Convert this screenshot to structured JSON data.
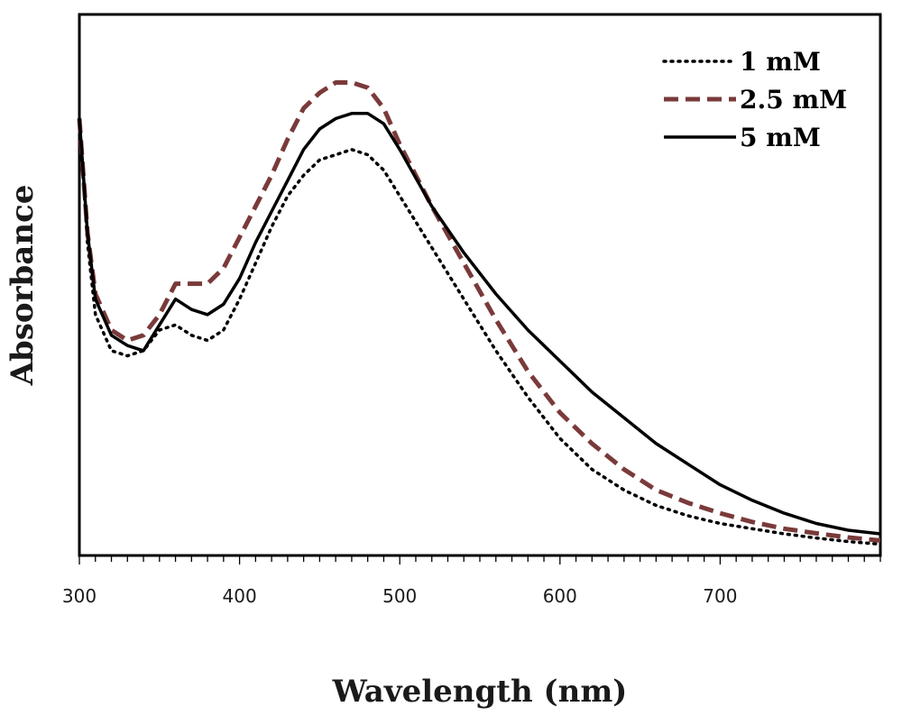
{
  "chart_data": {
    "type": "line",
    "title": "",
    "xlabel": "Wavelength (nm)",
    "ylabel": "Absorbance",
    "xlim": [
      300,
      800
    ],
    "ylim": [
      0,
      1
    ],
    "x_ticks": [
      300,
      400,
      500,
      600,
      700
    ],
    "x_minor_step": 10,
    "y_ticks_shown": false,
    "grid": false,
    "legend_position": "top-right",
    "series": [
      {
        "name": "1 mM",
        "color": "#000000",
        "style": "dotted",
        "points": [
          [
            300,
            0.84
          ],
          [
            305,
            0.6
          ],
          [
            310,
            0.46
          ],
          [
            320,
            0.39
          ],
          [
            330,
            0.38
          ],
          [
            340,
            0.39
          ],
          [
            350,
            0.43
          ],
          [
            360,
            0.44
          ],
          [
            370,
            0.42
          ],
          [
            380,
            0.41
          ],
          [
            390,
            0.43
          ],
          [
            400,
            0.49
          ],
          [
            410,
            0.56
          ],
          [
            420,
            0.63
          ],
          [
            430,
            0.69
          ],
          [
            440,
            0.73
          ],
          [
            450,
            0.76
          ],
          [
            460,
            0.77
          ],
          [
            470,
            0.78
          ],
          [
            480,
            0.77
          ],
          [
            490,
            0.74
          ],
          [
            500,
            0.69
          ],
          [
            520,
            0.59
          ],
          [
            540,
            0.49
          ],
          [
            560,
            0.39
          ],
          [
            580,
            0.3
          ],
          [
            600,
            0.22
          ],
          [
            620,
            0.16
          ],
          [
            640,
            0.12
          ],
          [
            660,
            0.09
          ],
          [
            680,
            0.07
          ],
          [
            700,
            0.055
          ],
          [
            720,
            0.045
          ],
          [
            740,
            0.035
          ],
          [
            760,
            0.027
          ],
          [
            780,
            0.02
          ],
          [
            800,
            0.015
          ]
        ]
      },
      {
        "name": "2.5 mM",
        "color": "#7a3a3a",
        "style": "dashed",
        "points": [
          [
            300,
            0.84
          ],
          [
            305,
            0.62
          ],
          [
            310,
            0.5
          ],
          [
            320,
            0.43
          ],
          [
            330,
            0.41
          ],
          [
            340,
            0.42
          ],
          [
            350,
            0.46
          ],
          [
            360,
            0.52
          ],
          [
            370,
            0.52
          ],
          [
            380,
            0.52
          ],
          [
            390,
            0.55
          ],
          [
            400,
            0.61
          ],
          [
            410,
            0.67
          ],
          [
            420,
            0.73
          ],
          [
            430,
            0.8
          ],
          [
            440,
            0.86
          ],
          [
            450,
            0.89
          ],
          [
            460,
            0.91
          ],
          [
            470,
            0.91
          ],
          [
            480,
            0.9
          ],
          [
            490,
            0.86
          ],
          [
            500,
            0.79
          ],
          [
            520,
            0.67
          ],
          [
            540,
            0.56
          ],
          [
            560,
            0.45
          ],
          [
            580,
            0.35
          ],
          [
            600,
            0.27
          ],
          [
            620,
            0.21
          ],
          [
            640,
            0.16
          ],
          [
            660,
            0.12
          ],
          [
            680,
            0.095
          ],
          [
            700,
            0.075
          ],
          [
            720,
            0.058
          ],
          [
            740,
            0.045
          ],
          [
            760,
            0.036
          ],
          [
            780,
            0.028
          ],
          [
            800,
            0.022
          ]
        ]
      },
      {
        "name": "5 mM",
        "color": "#000000",
        "style": "solid",
        "points": [
          [
            300,
            0.84
          ],
          [
            305,
            0.62
          ],
          [
            310,
            0.49
          ],
          [
            320,
            0.42
          ],
          [
            330,
            0.4
          ],
          [
            340,
            0.39
          ],
          [
            350,
            0.44
          ],
          [
            360,
            0.49
          ],
          [
            370,
            0.47
          ],
          [
            380,
            0.46
          ],
          [
            390,
            0.48
          ],
          [
            400,
            0.53
          ],
          [
            410,
            0.6
          ],
          [
            420,
            0.66
          ],
          [
            430,
            0.72
          ],
          [
            440,
            0.78
          ],
          [
            450,
            0.82
          ],
          [
            460,
            0.84
          ],
          [
            470,
            0.85
          ],
          [
            480,
            0.85
          ],
          [
            490,
            0.83
          ],
          [
            500,
            0.78
          ],
          [
            520,
            0.67
          ],
          [
            540,
            0.58
          ],
          [
            560,
            0.5
          ],
          [
            580,
            0.43
          ],
          [
            600,
            0.37
          ],
          [
            620,
            0.31
          ],
          [
            640,
            0.26
          ],
          [
            660,
            0.21
          ],
          [
            680,
            0.17
          ],
          [
            700,
            0.13
          ],
          [
            720,
            0.1
          ],
          [
            740,
            0.075
          ],
          [
            760,
            0.055
          ],
          [
            780,
            0.042
          ],
          [
            800,
            0.035
          ]
        ]
      }
    ]
  }
}
